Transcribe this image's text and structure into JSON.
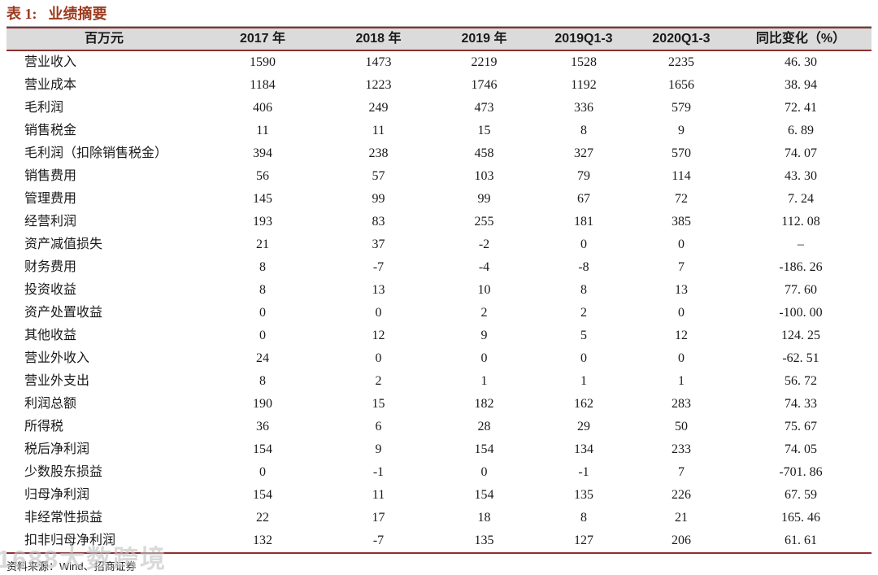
{
  "header": {
    "title_prefix": "表 1:",
    "title": "业绩摘要"
  },
  "table": {
    "columns": [
      "百万元",
      "2017 年",
      "2018 年",
      "2019 年",
      "2019Q1-3",
      "2020Q1-3",
      "同比变化（%）"
    ],
    "rows": [
      {
        "label": "营业收入",
        "values": [
          "1590",
          "1473",
          "2219",
          "1528",
          "2235",
          "46. 30"
        ]
      },
      {
        "label": "营业成本",
        "values": [
          "1184",
          "1223",
          "1746",
          "1192",
          "1656",
          "38. 94"
        ]
      },
      {
        "label": "毛利润",
        "values": [
          "406",
          "249",
          "473",
          "336",
          "579",
          "72. 41"
        ]
      },
      {
        "label": "销售税金",
        "values": [
          "11",
          "11",
          "15",
          "8",
          "9",
          "6. 89"
        ]
      },
      {
        "label": "毛利润（扣除销售税金）",
        "values": [
          "394",
          "238",
          "458",
          "327",
          "570",
          "74. 07"
        ]
      },
      {
        "label": "销售费用",
        "values": [
          "56",
          "57",
          "103",
          "79",
          "114",
          "43. 30"
        ]
      },
      {
        "label": "管理费用",
        "values": [
          "145",
          "99",
          "99",
          "67",
          "72",
          "7. 24"
        ]
      },
      {
        "label": "经营利润",
        "values": [
          "193",
          "83",
          "255",
          "181",
          "385",
          "112. 08"
        ]
      },
      {
        "label": "资产减值损失",
        "values": [
          "21",
          "37",
          "-2",
          "0",
          "0",
          "–"
        ]
      },
      {
        "label": "财务费用",
        "values": [
          "8",
          "-7",
          "-4",
          "-8",
          "7",
          "-186. 26"
        ]
      },
      {
        "label": "投资收益",
        "values": [
          "8",
          "13",
          "10",
          "8",
          "13",
          "77. 60"
        ]
      },
      {
        "label": "资产处置收益",
        "values": [
          "0",
          "0",
          "2",
          "2",
          "0",
          "-100. 00"
        ]
      },
      {
        "label": "其他收益",
        "values": [
          "0",
          "12",
          "9",
          "5",
          "12",
          "124. 25"
        ]
      },
      {
        "label": "营业外收入",
        "values": [
          "24",
          "0",
          "0",
          "0",
          "0",
          "-62. 51"
        ]
      },
      {
        "label": "营业外支出",
        "values": [
          "8",
          "2",
          "1",
          "1",
          "1",
          "56. 72"
        ]
      },
      {
        "label": "利润总额",
        "values": [
          "190",
          "15",
          "182",
          "162",
          "283",
          "74. 33"
        ]
      },
      {
        "label": "所得税",
        "values": [
          "36",
          "6",
          "28",
          "29",
          "50",
          "75. 67"
        ]
      },
      {
        "label": "税后净利润",
        "values": [
          "154",
          "9",
          "154",
          "134",
          "233",
          "74. 05"
        ]
      },
      {
        "label": "少数股东损益",
        "values": [
          "0",
          "-1",
          "0",
          "-1",
          "7",
          "-701. 86"
        ]
      },
      {
        "label": "归母净利润",
        "values": [
          "154",
          "11",
          "154",
          "135",
          "226",
          "67. 59"
        ]
      },
      {
        "label": "非经常性损益",
        "values": [
          "22",
          "17",
          "18",
          "8",
          "21",
          "165. 46"
        ]
      },
      {
        "label": "扣非归母净利润",
        "values": [
          "132",
          "-7",
          "135",
          "127",
          "206",
          "61. 61"
        ]
      }
    ]
  },
  "footer": {
    "source_label": "资料来源：",
    "source_value": "Wind、招商证券"
  },
  "watermark": "1688大数跨境",
  "colors": {
    "accent_title": "#9c3a1f",
    "table_border": "#8d3030",
    "header_bg": "#dbdbdb",
    "watermark": "#c3c3c3"
  }
}
